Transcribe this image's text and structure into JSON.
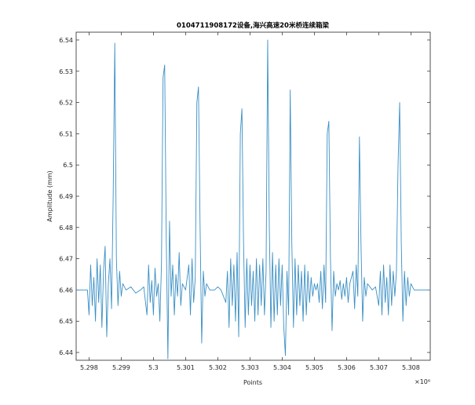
{
  "chart_data": {
    "type": "line",
    "title": "0104711908172设备,海兴高速20米桥连续箱梁",
    "xlabel": "Points",
    "ylabel": "Amplitude (mm)",
    "x_multiplier_label": "×10⁶",
    "xlim": [
      5.2976,
      5.3086
    ],
    "ylim": [
      6.4375,
      6.5425
    ],
    "x_ticks": [
      5.298,
      5.299,
      5.3,
      5.301,
      5.302,
      5.303,
      5.304,
      5.305,
      5.306,
      5.307,
      5.308
    ],
    "x_tick_labels": [
      "5.298",
      "5.299",
      "5.3",
      "5.301",
      "5.302",
      "5.303",
      "5.304",
      "5.305",
      "5.306",
      "5.307",
      "5.308"
    ],
    "y_ticks": [
      6.44,
      6.45,
      6.46,
      6.47,
      6.48,
      6.49,
      6.5,
      6.51,
      6.52,
      6.53,
      6.54
    ],
    "y_tick_labels": [
      "6.44",
      "6.45",
      "6.46",
      "6.47",
      "6.48",
      "6.49",
      "6.5",
      "6.51",
      "6.52",
      "6.53",
      "6.54"
    ],
    "grid": false,
    "line_color": "#3a8fc4",
    "baseline": 6.46,
    "series": [
      {
        "points": [
          [
            5.2976,
            6.46
          ],
          [
            5.29795,
            6.46
          ],
          [
            5.298,
            6.452
          ],
          [
            5.29805,
            6.468
          ],
          [
            5.2981,
            6.455
          ],
          [
            5.29815,
            6.464
          ],
          [
            5.2982,
            6.45
          ],
          [
            5.29825,
            6.47
          ],
          [
            5.2983,
            6.456
          ],
          [
            5.29835,
            6.468
          ],
          [
            5.2984,
            6.448
          ],
          [
            5.29845,
            6.466
          ],
          [
            5.2985,
            6.474
          ],
          [
            5.29855,
            6.445
          ],
          [
            5.2986,
            6.462
          ],
          [
            5.29865,
            6.47
          ],
          [
            5.2987,
            6.454
          ],
          [
            5.29875,
            6.49
          ],
          [
            5.2988,
            6.539
          ],
          [
            5.29885,
            6.47
          ],
          [
            5.2989,
            6.455
          ],
          [
            5.29895,
            6.466
          ],
          [
            5.299,
            6.458
          ],
          [
            5.29905,
            6.462
          ],
          [
            5.29915,
            6.46
          ],
          [
            5.2993,
            6.461
          ],
          [
            5.29945,
            6.459
          ],
          [
            5.2996,
            6.46
          ],
          [
            5.2997,
            6.461
          ],
          [
            5.2998,
            6.452
          ],
          [
            5.29985,
            6.468
          ],
          [
            5.2999,
            6.456
          ],
          [
            5.29995,
            6.463
          ],
          [
            5.3,
            6.452
          ],
          [
            5.30005,
            6.467
          ],
          [
            5.3001,
            6.458
          ],
          [
            5.30015,
            6.462
          ],
          [
            5.3002,
            6.45
          ],
          [
            5.30025,
            6.468
          ],
          [
            5.3003,
            6.528
          ],
          [
            5.30035,
            6.532
          ],
          [
            5.3004,
            6.476
          ],
          [
            5.30045,
            6.438
          ],
          [
            5.3005,
            6.482
          ],
          [
            5.30055,
            6.458
          ],
          [
            5.3006,
            6.468
          ],
          [
            5.30065,
            6.452
          ],
          [
            5.3007,
            6.465
          ],
          [
            5.30075,
            6.458
          ],
          [
            5.3008,
            6.472
          ],
          [
            5.30085,
            6.455
          ],
          [
            5.3009,
            6.462
          ],
          [
            5.301,
            6.46
          ],
          [
            5.3011,
            6.468
          ],
          [
            5.30115,
            6.452
          ],
          [
            5.3012,
            6.47
          ],
          [
            5.30125,
            6.456
          ],
          [
            5.3013,
            6.464
          ],
          [
            5.30135,
            6.52
          ],
          [
            5.3014,
            6.525
          ],
          [
            5.30145,
            6.48
          ],
          [
            5.3015,
            6.443
          ],
          [
            5.30155,
            6.466
          ],
          [
            5.3016,
            6.458
          ],
          [
            5.30165,
            6.462
          ],
          [
            5.30175,
            6.46
          ],
          [
            5.3019,
            6.46
          ],
          [
            5.302,
            6.461
          ],
          [
            5.3021,
            6.46
          ],
          [
            5.30225,
            6.456
          ],
          [
            5.3023,
            6.466
          ],
          [
            5.30235,
            6.448
          ],
          [
            5.3024,
            6.47
          ],
          [
            5.30245,
            6.455
          ],
          [
            5.3025,
            6.468
          ],
          [
            5.30255,
            6.45
          ],
          [
            5.3026,
            6.472
          ],
          [
            5.30265,
            6.445
          ],
          [
            5.3027,
            6.51
          ],
          [
            5.30275,
            6.518
          ],
          [
            5.3028,
            6.475
          ],
          [
            5.30285,
            6.448
          ],
          [
            5.3029,
            6.47
          ],
          [
            5.30295,
            6.452
          ],
          [
            5.303,
            6.468
          ],
          [
            5.30305,
            6.455
          ],
          [
            5.3031,
            6.466
          ],
          [
            5.30315,
            6.45
          ],
          [
            5.3032,
            6.47
          ],
          [
            5.30325,
            6.452
          ],
          [
            5.3033,
            6.468
          ],
          [
            5.30335,
            6.455
          ],
          [
            5.3034,
            6.47
          ],
          [
            5.30345,
            6.452
          ],
          [
            5.3035,
            6.466
          ],
          [
            5.30355,
            6.54
          ],
          [
            5.3036,
            6.48
          ],
          [
            5.30365,
            6.448
          ],
          [
            5.3037,
            6.472
          ],
          [
            5.30375,
            6.45
          ],
          [
            5.3038,
            6.468
          ],
          [
            5.30385,
            6.452
          ],
          [
            5.3039,
            6.47
          ],
          [
            5.30395,
            6.455
          ],
          [
            5.304,
            6.468
          ],
          [
            5.30405,
            6.448
          ],
          [
            5.3041,
            6.439
          ],
          [
            5.30415,
            6.466
          ],
          [
            5.3042,
            6.452
          ],
          [
            5.30425,
            6.524
          ],
          [
            5.3043,
            6.475
          ],
          [
            5.30435,
            6.448
          ],
          [
            5.3044,
            6.47
          ],
          [
            5.30445,
            6.452
          ],
          [
            5.3045,
            6.468
          ],
          [
            5.30455,
            6.455
          ],
          [
            5.3046,
            6.466
          ],
          [
            5.30465,
            6.45
          ],
          [
            5.3047,
            6.468
          ],
          [
            5.30475,
            6.452
          ],
          [
            5.3048,
            6.466
          ],
          [
            5.30485,
            6.456
          ],
          [
            5.3049,
            6.464
          ],
          [
            5.30495,
            6.458
          ],
          [
            5.305,
            6.462
          ],
          [
            5.30505,
            6.46
          ],
          [
            5.3051,
            6.462
          ],
          [
            5.30515,
            6.456
          ],
          [
            5.3052,
            6.466
          ],
          [
            5.30525,
            6.454
          ],
          [
            5.3053,
            6.468
          ],
          [
            5.30535,
            6.456
          ],
          [
            5.3054,
            6.51
          ],
          [
            5.30545,
            6.514
          ],
          [
            5.3055,
            6.47
          ],
          [
            5.30555,
            6.447
          ],
          [
            5.3056,
            6.466
          ],
          [
            5.30565,
            6.458
          ],
          [
            5.3057,
            6.462
          ],
          [
            5.30575,
            6.46
          ],
          [
            5.3058,
            6.463
          ],
          [
            5.30585,
            6.457
          ],
          [
            5.3059,
            6.462
          ],
          [
            5.30595,
            6.458
          ],
          [
            5.306,
            6.464
          ],
          [
            5.30605,
            6.456
          ],
          [
            5.3061,
            6.462
          ],
          [
            5.3062,
            6.466
          ],
          [
            5.30625,
            6.454
          ],
          [
            5.3063,
            6.468
          ],
          [
            5.30635,
            6.458
          ],
          [
            5.3064,
            6.509
          ],
          [
            5.30645,
            6.474
          ],
          [
            5.3065,
            6.45
          ],
          [
            5.30655,
            6.464
          ],
          [
            5.3066,
            6.458
          ],
          [
            5.30665,
            6.462
          ],
          [
            5.3068,
            6.46
          ],
          [
            5.3069,
            6.461
          ],
          [
            5.307,
            6.455
          ],
          [
            5.30705,
            6.466
          ],
          [
            5.3071,
            6.452
          ],
          [
            5.30715,
            6.468
          ],
          [
            5.3072,
            6.456
          ],
          [
            5.30725,
            6.464
          ],
          [
            5.3073,
            6.452
          ],
          [
            5.30735,
            6.468
          ],
          [
            5.3074,
            6.455
          ],
          [
            5.30745,
            6.466
          ],
          [
            5.3075,
            6.458
          ],
          [
            5.30755,
            6.466
          ],
          [
            5.3076,
            6.5
          ],
          [
            5.30765,
            6.52
          ],
          [
            5.3077,
            6.475
          ],
          [
            5.30775,
            6.45
          ],
          [
            5.3078,
            6.466
          ],
          [
            5.30785,
            6.455
          ],
          [
            5.3079,
            6.464
          ],
          [
            5.30795,
            6.458
          ],
          [
            5.308,
            6.462
          ],
          [
            5.3081,
            6.46
          ],
          [
            5.3086,
            6.46
          ]
        ]
      }
    ]
  }
}
